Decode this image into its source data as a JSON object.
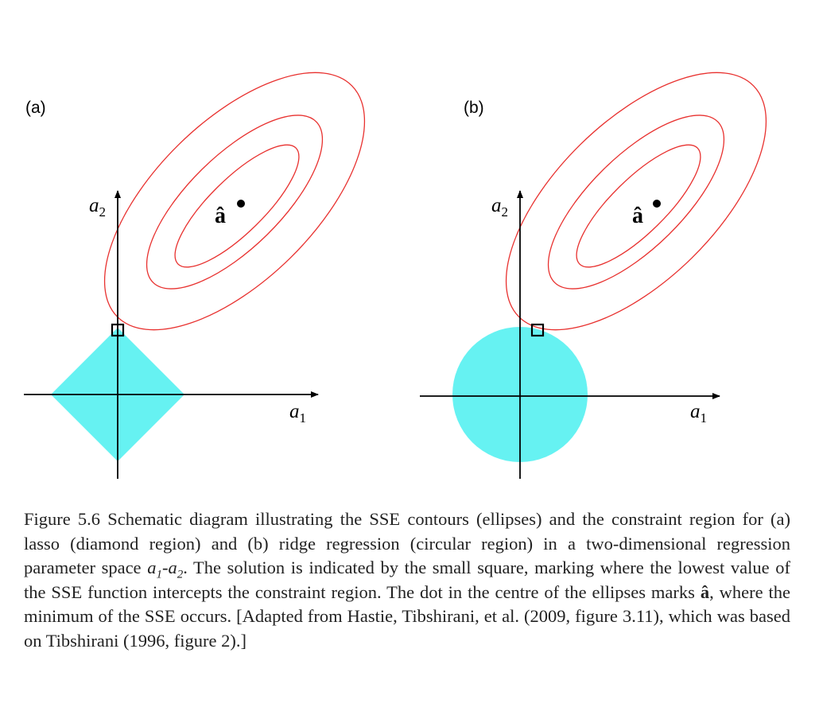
{
  "colors": {
    "contour": "#e8312f",
    "constraint_region": "#66f2f2",
    "axis": "#000000",
    "caption_text": "#222222"
  },
  "panels": [
    {
      "label": "(a)",
      "constraint_region": "diamond",
      "x_axis_label": "a",
      "x_axis_sub": "1",
      "y_axis_label": "a",
      "y_axis_sub": "2",
      "minimum_label": "â"
    },
    {
      "label": "(b)",
      "constraint_region": "circle",
      "x_axis_label": "a",
      "x_axis_sub": "1",
      "y_axis_label": "a",
      "y_axis_sub": "2",
      "minimum_label": "â"
    }
  ],
  "caption": {
    "p1": "Figure 5.6 Schematic diagram illustrating the SSE contours (ellipses) and the constraint region for (a) lasso (diamond region) and (b) ridge regression (circular region) in a two-dimensional regression parameter space ",
    "sym_a": "a",
    "sub_1": "1",
    "dash": "-",
    "sub_2": "2",
    "p2": ". The solution is indicated by the small square, marking where the lowest value of the SSE function intercepts the constraint region. The dot in the centre of the ellipses marks ",
    "ahat": "â",
    "p3": ", where the minimum of the SSE occurs. [Adapted from Hastie, Tibshirani, et al. (2009, figure 3.11), which was based on Tibshirani (1996, figure 2).]"
  }
}
